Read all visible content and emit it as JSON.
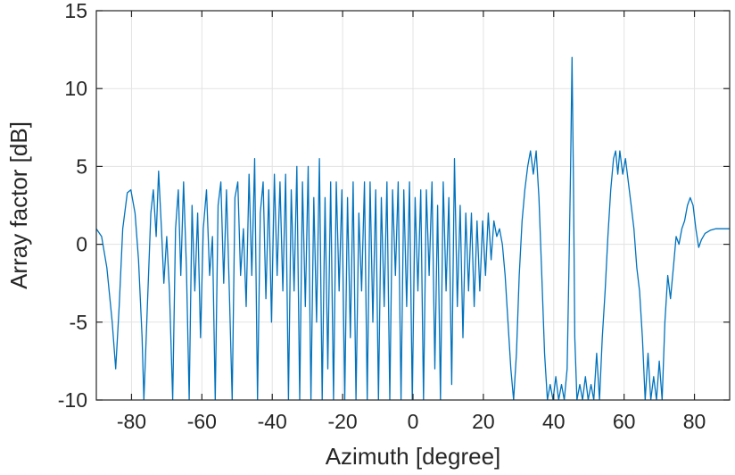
{
  "chart_data": {
    "type": "line",
    "xlabel": "Azimuth [degree]",
    "ylabel": "Array factor [dB]",
    "xlim": [
      -90,
      90
    ],
    "ylim": [
      -10,
      15
    ],
    "xticks": [
      -80,
      -60,
      -40,
      -20,
      0,
      20,
      40,
      60,
      80
    ],
    "yticks": [
      -10,
      -5,
      0,
      5,
      10,
      15
    ],
    "xtick_labels": [
      "-80",
      "-60",
      "-40",
      "-20",
      "0",
      "20",
      "40",
      "60",
      "80"
    ],
    "ytick_labels": [
      "-10",
      "-5",
      "0",
      "5",
      "10",
      "15"
    ],
    "grid": true,
    "colors": {
      "series": "#0072bd",
      "axis": "#262626",
      "grid": "#e3e3e3"
    },
    "series": [
      {
        "points": [
          [
            -90,
            1.0
          ],
          [
            -88.5,
            0.5
          ],
          [
            -87,
            -1.5
          ],
          [
            -85.5,
            -5.0
          ],
          [
            -84.5,
            -8.0
          ],
          [
            -83.5,
            -4.0
          ],
          [
            -82.5,
            1.0
          ],
          [
            -81.2,
            3.3
          ],
          [
            -80.2,
            3.5
          ],
          [
            -79,
            2.0
          ],
          [
            -78,
            -1.0
          ],
          [
            -77,
            -6.0
          ],
          [
            -76.5,
            -10
          ],
          [
            -75.5,
            -4.0
          ],
          [
            -74.5,
            2.0
          ],
          [
            -73.8,
            3.5
          ],
          [
            -73,
            0.5
          ],
          [
            -72.3,
            4.7
          ],
          [
            -71.5,
            1.0
          ],
          [
            -70.8,
            -2.5
          ],
          [
            -70,
            0.5
          ],
          [
            -69.2,
            -3.0
          ],
          [
            -68.3,
            -10
          ],
          [
            -67.5,
            1.0
          ],
          [
            -66.7,
            3.5
          ],
          [
            -66,
            -2.0
          ],
          [
            -65.2,
            4.0
          ],
          [
            -64.4,
            -1.5
          ],
          [
            -63.6,
            -10
          ],
          [
            -62.8,
            2.5
          ],
          [
            -62,
            -3.0
          ],
          [
            -61.2,
            2.0
          ],
          [
            -60.4,
            -6.0
          ],
          [
            -59.6,
            1.0
          ],
          [
            -58.7,
            3.5
          ],
          [
            -57.8,
            -2.0
          ],
          [
            -57,
            0.5
          ],
          [
            -56.2,
            -10
          ],
          [
            -55.4,
            2.5
          ],
          [
            -54.6,
            4.0
          ],
          [
            -53.8,
            -2.5
          ],
          [
            -53,
            3.5
          ],
          [
            -52.2,
            -3.0
          ],
          [
            -51.4,
            -10
          ],
          [
            -50.6,
            3.0
          ],
          [
            -49.8,
            4.0
          ],
          [
            -49,
            -2.0
          ],
          [
            -48.2,
            1.0
          ],
          [
            -47.4,
            -4.0
          ],
          [
            -46.6,
            4.5
          ],
          [
            -45.8,
            -2.0
          ],
          [
            -45,
            5.5
          ],
          [
            -44.2,
            -10
          ],
          [
            -43.4,
            2.0
          ],
          [
            -42.6,
            4.0
          ],
          [
            -41.8,
            -3.5
          ],
          [
            -41,
            3.5
          ],
          [
            -40.2,
            -5.0
          ],
          [
            -39.4,
            4.5
          ],
          [
            -38.6,
            -2.0
          ],
          [
            -37.8,
            4.0
          ],
          [
            -37,
            -3.0
          ],
          [
            -36.2,
            4.5
          ],
          [
            -35.4,
            -10
          ],
          [
            -34.6,
            3.5
          ],
          [
            -33.8,
            -3.0
          ],
          [
            -33,
            5.0
          ],
          [
            -32.2,
            -10
          ],
          [
            -31.4,
            4.0
          ],
          [
            -30.6,
            -4.0
          ],
          [
            -29.8,
            5.0
          ],
          [
            -29,
            -10
          ],
          [
            -28.2,
            3.0
          ],
          [
            -27.4,
            -5.0
          ],
          [
            -26.6,
            5.5
          ],
          [
            -25.8,
            -10
          ],
          [
            -25,
            3.0
          ],
          [
            -24.2,
            -8.0
          ],
          [
            -23.4,
            4.0
          ],
          [
            -22.6,
            -10
          ],
          [
            -21.8,
            4.0
          ],
          [
            -21,
            -3.0
          ],
          [
            -20.2,
            3.5
          ],
          [
            -19.4,
            -10
          ],
          [
            -18.6,
            3.0
          ],
          [
            -17.8,
            -6.0
          ],
          [
            -17,
            4.0
          ],
          [
            -16.2,
            -10
          ],
          [
            -15.4,
            2.0
          ],
          [
            -14.6,
            -3.0
          ],
          [
            -13.8,
            4.0
          ],
          [
            -13,
            -10
          ],
          [
            -12.2,
            4.0
          ],
          [
            -11.4,
            -5.0
          ],
          [
            -10.6,
            3.5
          ],
          [
            -9.8,
            -10
          ],
          [
            -9,
            3.0
          ],
          [
            -8.2,
            -4.0
          ],
          [
            -7.4,
            4.0
          ],
          [
            -6.6,
            -10
          ],
          [
            -5.8,
            3.5
          ],
          [
            -5,
            -2.0
          ],
          [
            -4.2,
            4.0
          ],
          [
            -3.4,
            -10
          ],
          [
            -2.6,
            3.5
          ],
          [
            -1.8,
            -4.0
          ],
          [
            -1,
            4.0
          ],
          [
            -0.2,
            -10
          ],
          [
            0.6,
            3.0
          ],
          [
            1.4,
            -3.0
          ],
          [
            2.2,
            3.5
          ],
          [
            3,
            -10
          ],
          [
            3.8,
            3.5
          ],
          [
            4.6,
            -2.0
          ],
          [
            5.4,
            4.0
          ],
          [
            6.2,
            -8.0
          ],
          [
            7,
            2.5
          ],
          [
            7.8,
            -10
          ],
          [
            8.6,
            4.0
          ],
          [
            9.4,
            -3.0
          ],
          [
            10.2,
            3.0
          ],
          [
            11,
            -9.0
          ],
          [
            11.8,
            5.5
          ],
          [
            12.6,
            -4.0
          ],
          [
            13.4,
            2.5
          ],
          [
            14.2,
            -6.0
          ],
          [
            15,
            2.0
          ],
          [
            15.8,
            -3.0
          ],
          [
            16.6,
            2.0
          ],
          [
            17.4,
            -4.0
          ],
          [
            18.2,
            1.5
          ],
          [
            19,
            -3.0
          ],
          [
            19.8,
            1.5
          ],
          [
            20.6,
            -2.0
          ],
          [
            21.4,
            2.0
          ],
          [
            22.2,
            -1.0
          ],
          [
            23,
            1.5
          ],
          [
            23.8,
            0.5
          ],
          [
            24.6,
            1.0
          ],
          [
            25.4,
            0.0
          ],
          [
            26.2,
            -2.0
          ],
          [
            27,
            -5.0
          ],
          [
            27.8,
            -8.0
          ],
          [
            28.6,
            -10
          ],
          [
            29.4,
            -7.0
          ],
          [
            30.2,
            -2.0
          ],
          [
            31,
            1.5
          ],
          [
            31.8,
            3.5
          ],
          [
            32.6,
            5.0
          ],
          [
            33.4,
            6.0
          ],
          [
            34.2,
            4.5
          ],
          [
            35,
            6.0
          ],
          [
            35.8,
            3.0
          ],
          [
            36.6,
            -2.0
          ],
          [
            37.4,
            -7.0
          ],
          [
            38.2,
            -10
          ],
          [
            39,
            -9.0
          ],
          [
            39.8,
            -10
          ],
          [
            40.6,
            -8.5
          ],
          [
            41.4,
            -10
          ],
          [
            42.2,
            -9.0
          ],
          [
            43,
            -10
          ],
          [
            43.8,
            -8.0
          ],
          [
            44.3,
            -2.0
          ],
          [
            44.8,
            5.0
          ],
          [
            45.2,
            12.0
          ],
          [
            45.6,
            4.0
          ],
          [
            46,
            -6.0
          ],
          [
            46.6,
            -10
          ],
          [
            47.4,
            -9.0
          ],
          [
            48.2,
            -10
          ],
          [
            49,
            -8.5
          ],
          [
            49.8,
            -10
          ],
          [
            50.6,
            -9.0
          ],
          [
            51.4,
            -10
          ],
          [
            52.2,
            -7.0
          ],
          [
            53,
            -10
          ],
          [
            53.8,
            -6.0
          ],
          [
            54.6,
            -3.0
          ],
          [
            55.4,
            0.5
          ],
          [
            56.2,
            3.5
          ],
          [
            57,
            5.5
          ],
          [
            57.6,
            6.0
          ],
          [
            58.2,
            4.5
          ],
          [
            58.8,
            6.0
          ],
          [
            59.6,
            4.5
          ],
          [
            60.4,
            5.5
          ],
          [
            61.2,
            4.0
          ],
          [
            62,
            2.5
          ],
          [
            62.8,
            1.0
          ],
          [
            63.6,
            -1.5
          ],
          [
            64.4,
            -3.0
          ],
          [
            65.2,
            -6.0
          ],
          [
            66,
            -10
          ],
          [
            66.8,
            -7.0
          ],
          [
            67.6,
            -10
          ],
          [
            68.4,
            -8.5
          ],
          [
            69.2,
            -10
          ],
          [
            70,
            -7.5
          ],
          [
            70.8,
            -10
          ],
          [
            71.6,
            -5.0
          ],
          [
            72.4,
            -2.0
          ],
          [
            73.2,
            -3.5
          ],
          [
            74,
            -1.5
          ],
          [
            74.8,
            0.5
          ],
          [
            75.6,
            0.0
          ],
          [
            76.4,
            1.0
          ],
          [
            77.2,
            1.5
          ],
          [
            78,
            2.5
          ],
          [
            78.8,
            3.0
          ],
          [
            79.6,
            2.5
          ],
          [
            80.4,
            1.0
          ],
          [
            81.2,
            -0.2
          ],
          [
            82,
            0.3
          ],
          [
            83,
            0.7
          ],
          [
            84.5,
            0.9
          ],
          [
            86,
            1.0
          ],
          [
            88,
            1.0
          ],
          [
            90,
            1.0
          ]
        ]
      }
    ]
  }
}
